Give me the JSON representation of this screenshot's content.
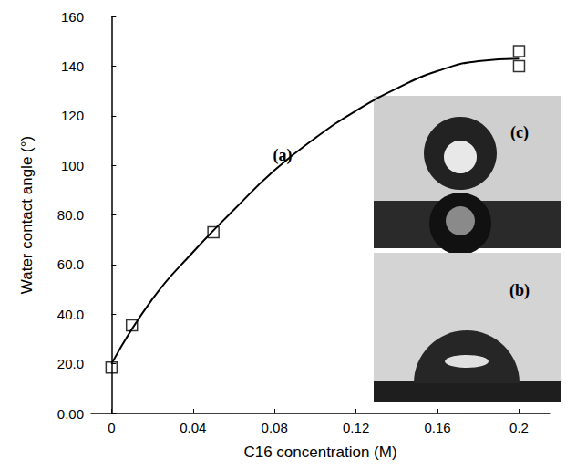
{
  "chart_data": {
    "type": "scatter",
    "x_label": "C16 concentration (M)",
    "y_label": "Water contact angle (°)",
    "annotations": [
      "(a)",
      "(b)",
      "(c)"
    ],
    "xlim": [
      -0.01,
      0.215
    ],
    "xticks": [
      0,
      0.04,
      0.08,
      0.12,
      0.16,
      0.2
    ],
    "ylim": [
      0,
      160
    ],
    "yticks": [
      {
        "value": 0,
        "label": "0.00"
      },
      {
        "value": 20,
        "label": "20.0"
      },
      {
        "value": 40,
        "label": "40.0"
      },
      {
        "value": 60,
        "label": "60.0"
      },
      {
        "value": 80,
        "label": "80.0"
      },
      100,
      120,
      140,
      160
    ],
    "grid": false,
    "series": [
      {
        "type": "scatter",
        "marker": "square",
        "color": "#000000",
        "x": [
          0,
          0.01,
          0.05,
          0.2,
          0.2
        ],
        "values": [
          18.5,
          35.5,
          73,
          146,
          140
        ]
      },
      {
        "type": "line",
        "line_style": "solid",
        "color": "#000000",
        "x": [
          0,
          0.02,
          0.04,
          0.06,
          0.08,
          0.1,
          0.12,
          0.14,
          0.16,
          0.18,
          0.2
        ],
        "values": [
          20,
          46,
          65,
          82,
          98,
          111,
          122,
          131,
          138,
          142,
          143
        ]
      }
    ]
  }
}
